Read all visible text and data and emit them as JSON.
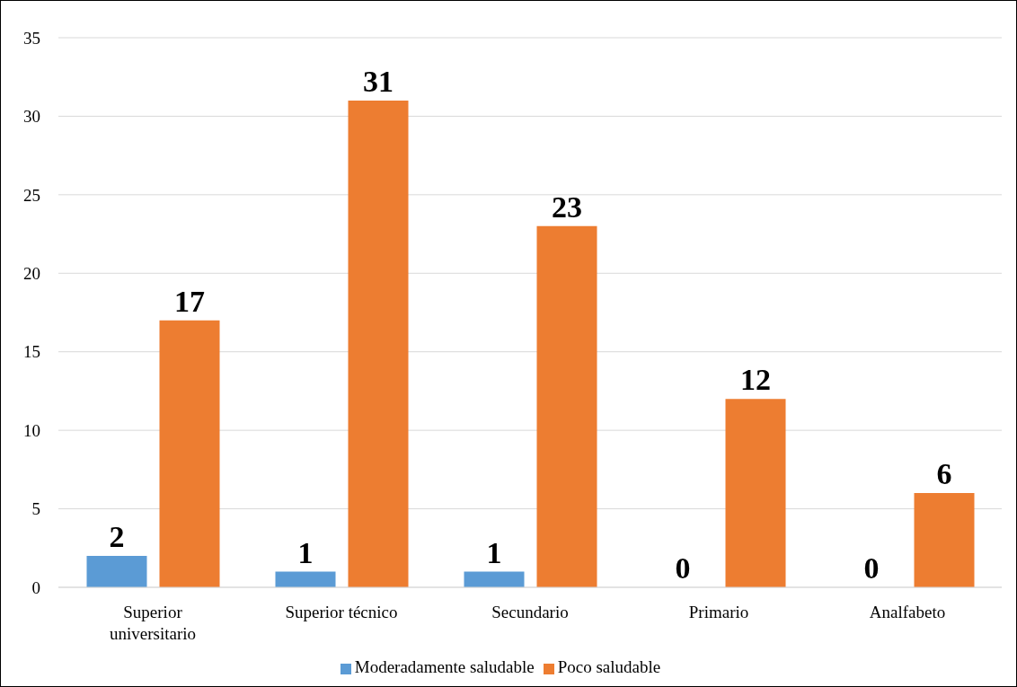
{
  "chart_data": {
    "type": "bar",
    "categories": [
      "Superior universitario",
      "Superior técnico",
      "Secundario",
      "Primario",
      "Analfabeto"
    ],
    "series": [
      {
        "name": "Moderadamente saludable",
        "color": "#5b9bd5",
        "values": [
          2,
          1,
          1,
          0,
          0
        ]
      },
      {
        "name": "Poco saludable",
        "color": "#ed7d31",
        "values": [
          17,
          31,
          23,
          12,
          6
        ]
      }
    ],
    "ylim": [
      0,
      35
    ],
    "yticks": [
      0,
      5,
      10,
      15,
      20,
      25,
      30,
      35
    ],
    "grid": "y",
    "legend": "bottom",
    "data_labels": true
  }
}
